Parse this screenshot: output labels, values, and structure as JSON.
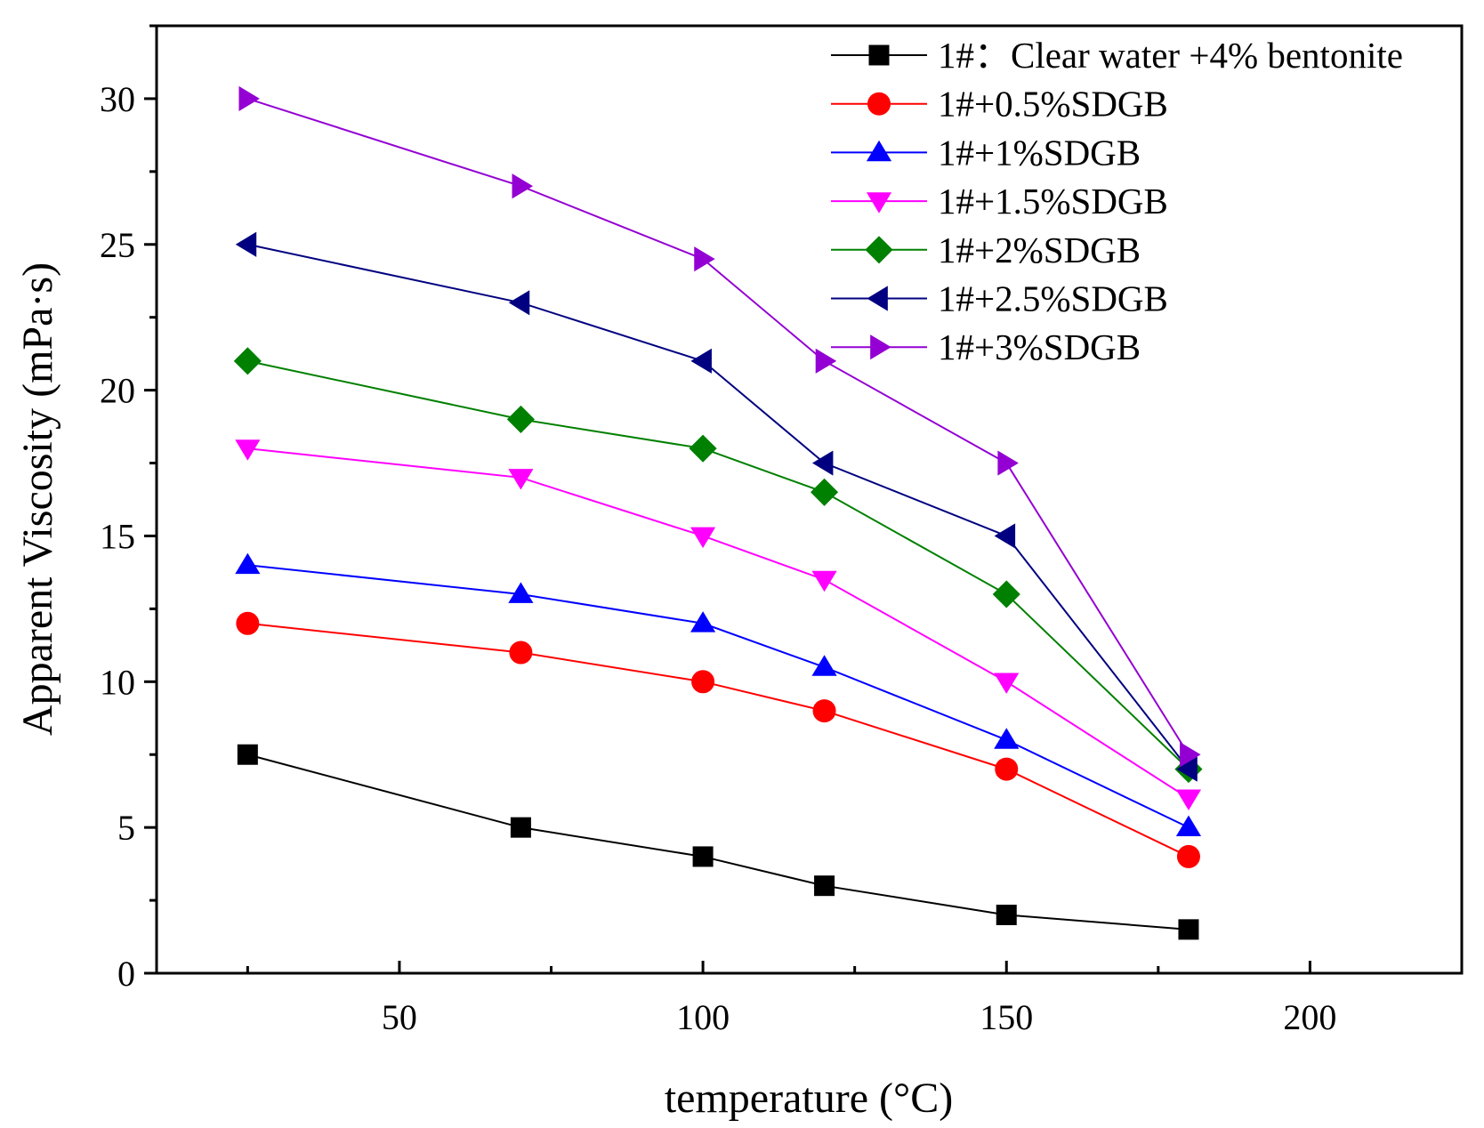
{
  "chart_data": {
    "type": "line",
    "title": "",
    "xlabel": "temperature (°C)",
    "ylabel": "Apparent Viscosity (mPa·s)",
    "xlim": [
      10,
      225
    ],
    "ylim": [
      0,
      32.5
    ],
    "x_ticks": [
      50,
      100,
      150,
      200
    ],
    "y_ticks": [
      0,
      5,
      10,
      15,
      20,
      25,
      30
    ],
    "grid": false,
    "legend_position": "top-right",
    "x": [
      25,
      70,
      100,
      120,
      150,
      180
    ],
    "series": [
      {
        "name": "1#：Clear water +4% bentonite",
        "marker": "square",
        "color": "#000000",
        "values": [
          7.5,
          5,
          4,
          3,
          2,
          1.5
        ]
      },
      {
        "name": "1#+0.5%SDGB",
        "marker": "circle",
        "color": "#ff0000",
        "values": [
          12,
          11,
          10,
          9,
          7,
          4
        ]
      },
      {
        "name": "1#+1%SDGB",
        "marker": "triangle-up",
        "color": "#0000ff",
        "values": [
          14,
          13,
          12,
          10.5,
          8,
          5
        ]
      },
      {
        "name": "1#+1.5%SDGB",
        "marker": "triangle-down",
        "color": "#ff00ff",
        "values": [
          18,
          17,
          15,
          13.5,
          10,
          6
        ]
      },
      {
        "name": "1#+2%SDGB",
        "marker": "diamond",
        "color": "#008000",
        "values": [
          21,
          19,
          18,
          16.5,
          13,
          7
        ]
      },
      {
        "name": "1#+2.5%SDGB",
        "marker": "triangle-left",
        "color": "#000080",
        "values": [
          25,
          23,
          21,
          17.5,
          15,
          7
        ]
      },
      {
        "name": "1#+3%SDGB",
        "marker": "triangle-right",
        "color": "#9400d3",
        "values": [
          30,
          27,
          24.5,
          21,
          17.5,
          7.5
        ]
      }
    ]
  }
}
